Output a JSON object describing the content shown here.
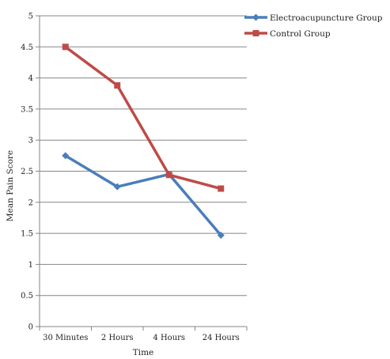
{
  "chart_data": {
    "type": "line",
    "title": "",
    "xlabel": "Time",
    "ylabel": "Mean Pain Score",
    "categories": [
      "30 Minutes",
      "2 Hours",
      "4 Hours",
      "24 Hours"
    ],
    "ylim": [
      0,
      5
    ],
    "yticks": [
      "0",
      "0.5",
      "1",
      "1.5",
      "2",
      "2.5",
      "3",
      "3.5",
      "4",
      "4.5",
      "5"
    ],
    "grid": true,
    "legend_position": "right",
    "series": [
      {
        "name": "Electroacupuncture Group",
        "values": [
          2.75,
          2.25,
          2.45,
          1.47
        ],
        "color": "#4a7ebb",
        "marker": "diamond"
      },
      {
        "name": "Control Group",
        "values": [
          4.5,
          3.88,
          2.44,
          2.22
        ],
        "color": "#be4b48",
        "marker": "square"
      }
    ]
  }
}
